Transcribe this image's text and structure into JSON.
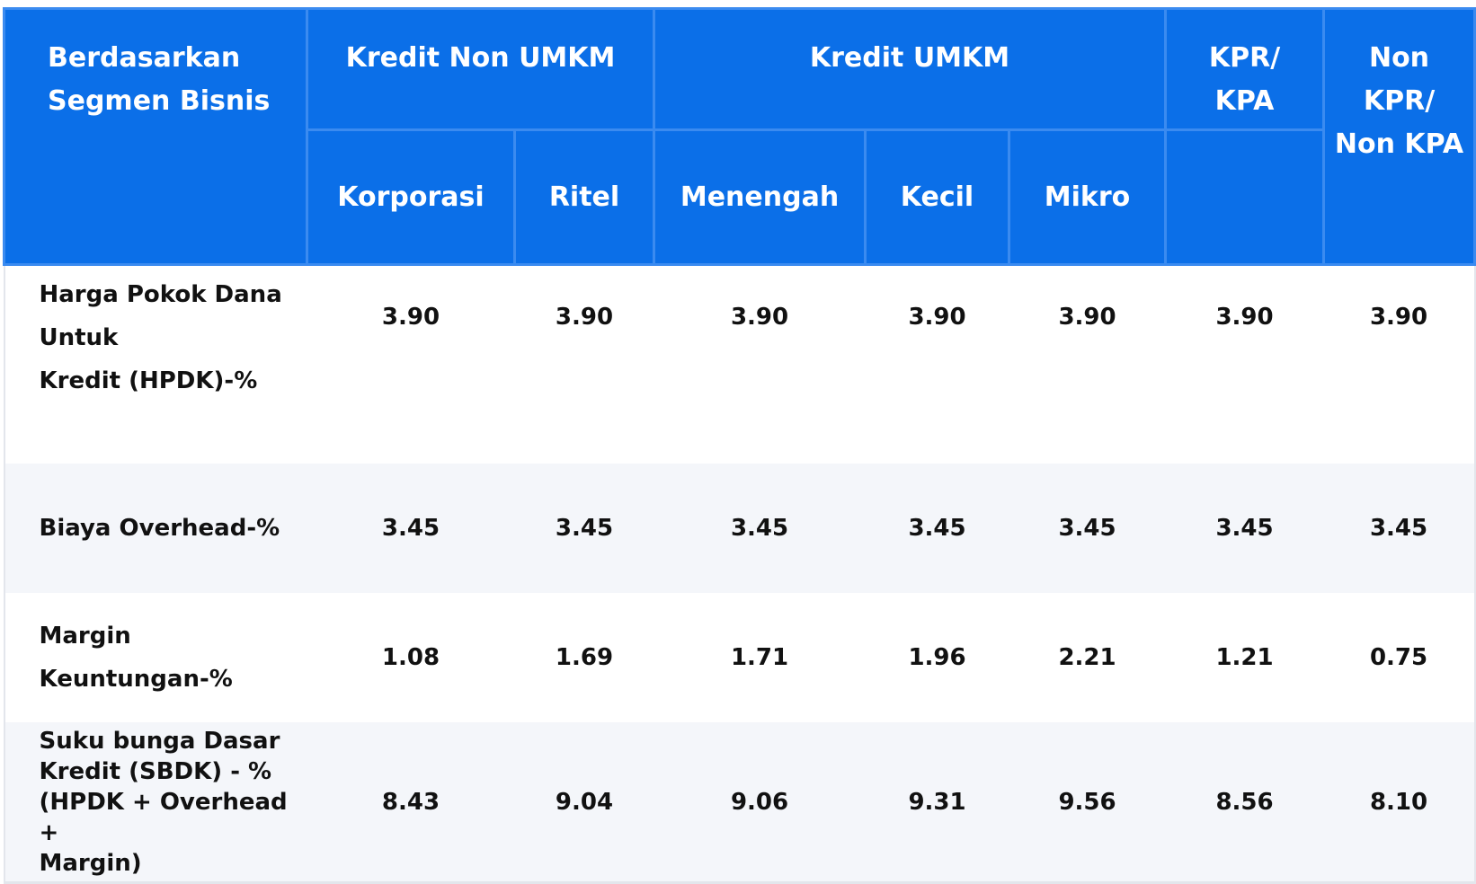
{
  "header": {
    "segment": "Berdasarkan Segmen Bisnis",
    "groups": [
      "Kredit Non UMKM",
      "Kredit UMKM",
      "KPR/ KPA",
      "Non KPR/ Non KPA"
    ],
    "subcolumns": [
      "Korporasi",
      "Ritel",
      "Menengah",
      "Kecil",
      "Mikro"
    ]
  },
  "table": {
    "rows": [
      {
        "label_lines": [
          "Harga Pokok Dana",
          "Untuk",
          "Kredit (HPDK)-%"
        ],
        "values": [
          "3.90",
          "3.90",
          "3.90",
          "3.90",
          "3.90",
          "3.90",
          "3.90"
        ]
      },
      {
        "label_lines": [
          "Biaya Overhead-%"
        ],
        "values": [
          "3.45",
          "3.45",
          "3.45",
          "3.45",
          "3.45",
          "3.45",
          "3.45"
        ]
      },
      {
        "label_lines": [
          "Margin",
          "Keuntungan-%"
        ],
        "values": [
          "1.08",
          "1.69",
          "1.71",
          "1.96",
          "2.21",
          "1.21",
          "0.75"
        ]
      },
      {
        "label_lines": [
          "Suku bunga Dasar",
          "Kredit (SBDK) - %",
          "(HPDK + Overhead +",
          "Margin)"
        ],
        "values": [
          "8.43",
          "9.04",
          "9.06",
          "9.31",
          "9.56",
          "8.56",
          "8.10"
        ]
      }
    ]
  }
}
